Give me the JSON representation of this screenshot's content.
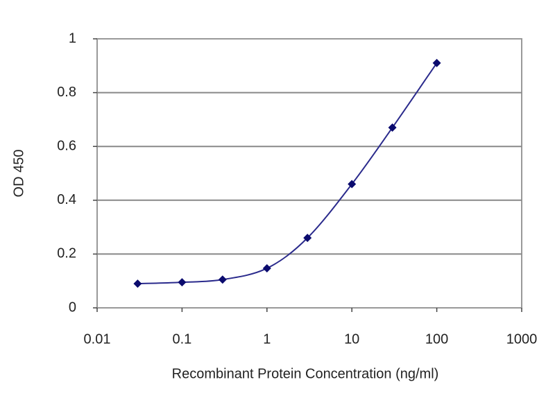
{
  "chart_data": {
    "type": "line",
    "x_label": "Recombinant Protein Concentration (ng/ml)",
    "y_label": "OD 450",
    "x": [
      0.03,
      0.1,
      0.3,
      1,
      3,
      10,
      30,
      100
    ],
    "series": [
      {
        "color": "#2a2a8c",
        "values": [
          0.09,
          0.095,
          0.105,
          0.147,
          0.26,
          0.46,
          0.67,
          0.91
        ]
      }
    ],
    "xscale": "log",
    "xlim": [
      0.01,
      1000
    ],
    "xticks": [
      0.01,
      0.1,
      1,
      10,
      100,
      1000
    ],
    "ylim": [
      0,
      1
    ],
    "yticks": [
      0,
      0.2,
      0.4,
      0.6,
      0.8,
      1
    ],
    "grid": true
  }
}
